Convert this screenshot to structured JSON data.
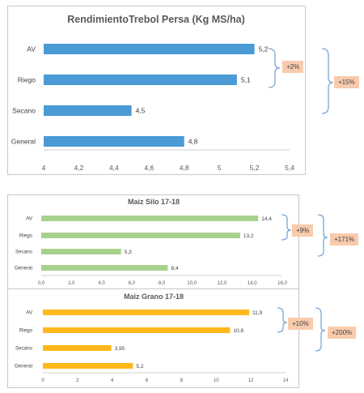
{
  "charts": [
    {
      "chart_data": {
        "type": "bar",
        "orientation": "horizontal",
        "title": "RendimientoTrebol Persa (Kg MS/ha)",
        "categories": [
          "AV",
          "Riego",
          "Secano",
          "General"
        ],
        "values": [
          5.2,
          5.1,
          4.5,
          4.8
        ],
        "value_labels": [
          "5,2",
          "5,1",
          "4,5",
          "4,8"
        ],
        "xlim": [
          4,
          5.4
        ],
        "x_ticks": [
          "4",
          "4,2",
          "4,4",
          "4,6",
          "4,8",
          "5",
          "5,2",
          "5,4"
        ],
        "color": "#4a9ad4",
        "grid": false
      },
      "annotations": [
        {
          "label": "+2%"
        },
        {
          "label": "+15%"
        }
      ]
    },
    {
      "chart_data": {
        "type": "bar",
        "orientation": "horizontal",
        "title": "Maiz Silo 17-18",
        "categories": [
          "AV",
          "Riego",
          "Secano",
          "General"
        ],
        "values": [
          14.4,
          13.2,
          5.3,
          8.4
        ],
        "value_labels": [
          "14,4",
          "13,2",
          "5,3",
          "8,4"
        ],
        "xlim": [
          0,
          16
        ],
        "x_ticks": [
          "0,0",
          "2,0",
          "4,0",
          "6,0",
          "8,0",
          "10,0",
          "12,0",
          "14,0",
          "16,0"
        ],
        "color": "#a9d18e",
        "grid": false
      },
      "annotations": [
        {
          "label": "+9%"
        },
        {
          "label": "+171%"
        }
      ]
    },
    {
      "chart_data": {
        "type": "bar",
        "orientation": "horizontal",
        "title": "Maiz Grano 17-18",
        "categories": [
          "AV",
          "Riego",
          "Secano",
          "General"
        ],
        "values": [
          11.9,
          10.8,
          3.95,
          5.2
        ],
        "value_labels": [
          "11,9",
          "10,8",
          "3,95",
          "5,2"
        ],
        "xlim": [
          0,
          14
        ],
        "x_ticks": [
          "0",
          "2",
          "4",
          "6",
          "8",
          "10",
          "12",
          "14"
        ],
        "color": "#ffb81c",
        "grid": false
      },
      "annotations": [
        {
          "label": "+10%"
        },
        {
          "label": "+200%"
        }
      ]
    }
  ]
}
